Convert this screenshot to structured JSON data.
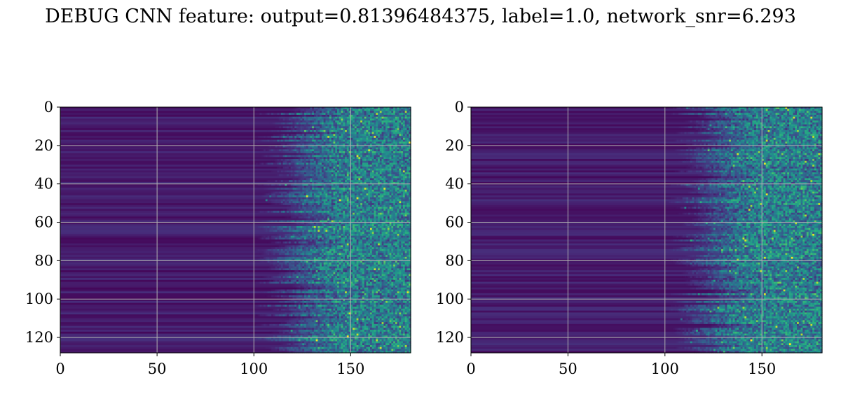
{
  "title": "DEBUG CNN feature: output=0.81396484375, label=1.0, network_snr=6.293",
  "chart_data": [
    {
      "type": "heatmap",
      "panel": "left",
      "colormap": "viridis",
      "grid": true,
      "xlim": [
        0,
        181
      ],
      "ylim": [
        128,
        0
      ],
      "rows": 128,
      "cols": 181,
      "onset_col": 110,
      "seed": 7,
      "xticks": [
        "0",
        "50",
        "100",
        "150"
      ],
      "yticks": [
        "0",
        "20",
        "40",
        "60",
        "80",
        "100",
        "120"
      ]
    },
    {
      "type": "heatmap",
      "panel": "right",
      "colormap": "viridis",
      "grid": true,
      "xlim": [
        0,
        181
      ],
      "ylim": [
        128,
        0
      ],
      "rows": 128,
      "cols": 181,
      "onset_col": 112,
      "seed": 19,
      "xticks": [
        "0",
        "50",
        "100",
        "150"
      ],
      "yticks": [
        "0",
        "20",
        "40",
        "60",
        "80",
        "100",
        "120"
      ]
    }
  ]
}
